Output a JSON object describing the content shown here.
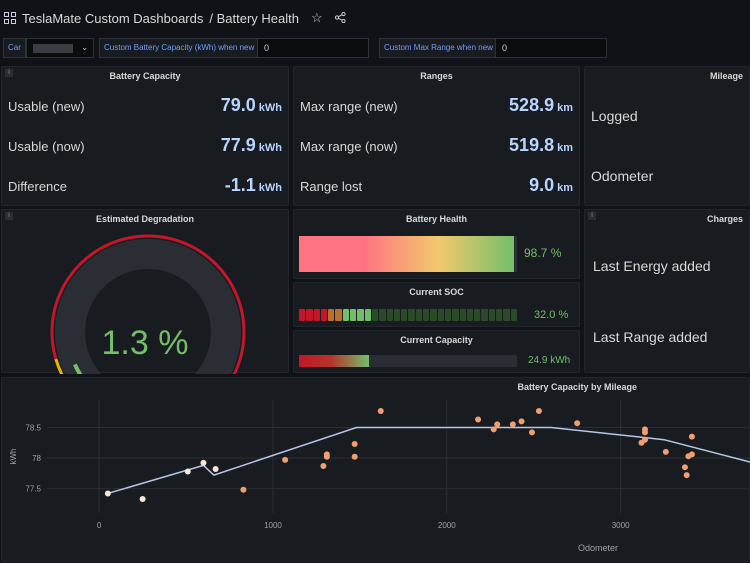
{
  "header": {
    "dashboard": "TeslaMate Custom Dashboards",
    "page": "/ Battery Health"
  },
  "vars": {
    "car_label": "Car",
    "car_value": "",
    "capacity_label": "Custom Battery Capacity (kWh) when new",
    "capacity_value": "0",
    "range_label": "Custom Max Range when new",
    "range_value": "0"
  },
  "battery_capacity": {
    "title": "Battery Capacity",
    "rows": [
      {
        "label": "Usable (new)",
        "value": "79.0",
        "unit": "kWh"
      },
      {
        "label": "Usable (now)",
        "value": "77.9",
        "unit": "kWh"
      },
      {
        "label": "Difference",
        "value": "-1.1",
        "unit": "kWh"
      }
    ]
  },
  "ranges": {
    "title": "Ranges",
    "rows": [
      {
        "label": "Max range (new)",
        "value": "528.9",
        "unit": "km"
      },
      {
        "label": "Max range (now)",
        "value": "519.8",
        "unit": "km"
      },
      {
        "label": "Range lost",
        "value": "9.0",
        "unit": "km"
      }
    ]
  },
  "mileage": {
    "title": "Mileage",
    "logged": "Logged",
    "odometer": "Odometer"
  },
  "degradation": {
    "title": "Estimated Degradation",
    "value": "1.3 %",
    "gauge_fraction": 0.013
  },
  "battery_health": {
    "title": "Battery Health",
    "value": "98.7 %",
    "fraction": 0.987
  },
  "soc": {
    "title": "Current SOC",
    "value": "32.0 %",
    "fraction": 0.32
  },
  "current_capacity": {
    "title": "Current Capacity",
    "value": "24.9 kWh",
    "fraction": 0.32
  },
  "charges": {
    "title": "Charges",
    "energy": "Last Energy added",
    "range": "Last Range added"
  },
  "colors": {
    "accent": "#6e9fff",
    "value_blue": "#b8d5ff",
    "green": "#73bf69",
    "red": "#c4162a",
    "orange": "#f2995b"
  },
  "chart_data": {
    "type": "scatter",
    "title": "Battery Capacity by Mileage",
    "xlabel": "Odometer",
    "ylabel": "kWh",
    "xlim": [
      -300,
      3750
    ],
    "ylim": [
      77.1,
      78.95
    ],
    "xticks": [
      "0",
      "1000",
      "2000",
      "3000"
    ],
    "yticks": [
      "77.5",
      "78",
      "78.5"
    ],
    "points": [
      {
        "x": 50,
        "y": 77.42,
        "c": "#f5e6d8"
      },
      {
        "x": 250,
        "y": 77.33,
        "c": "#f5e6d8"
      },
      {
        "x": 510,
        "y": 77.78,
        "c": "#f5e6d8"
      },
      {
        "x": 600,
        "y": 77.92,
        "c": "#f5e6d8"
      },
      {
        "x": 670,
        "y": 77.82,
        "c": "#f5e6d8"
      },
      {
        "x": 830,
        "y": 77.48,
        "c": "#f0a070"
      },
      {
        "x": 1070,
        "y": 77.97,
        "c": "#f0a070"
      },
      {
        "x": 1290,
        "y": 77.87,
        "c": "#f0a070"
      },
      {
        "x": 1310,
        "y": 78.02,
        "c": "#f0a070"
      },
      {
        "x": 1310,
        "y": 78.06,
        "c": "#f0a070"
      },
      {
        "x": 1470,
        "y": 78.02,
        "c": "#f0a070"
      },
      {
        "x": 1470,
        "y": 78.23,
        "c": "#f0a070"
      },
      {
        "x": 1620,
        "y": 78.77,
        "c": "#f0a070"
      },
      {
        "x": 2180,
        "y": 78.63,
        "c": "#f0a070"
      },
      {
        "x": 2270,
        "y": 78.47,
        "c": "#f0a070"
      },
      {
        "x": 2290,
        "y": 78.55,
        "c": "#f0a070"
      },
      {
        "x": 2380,
        "y": 78.55,
        "c": "#f0a070"
      },
      {
        "x": 2430,
        "y": 78.6,
        "c": "#f0a070"
      },
      {
        "x": 2490,
        "y": 78.42,
        "c": "#f0a070"
      },
      {
        "x": 2530,
        "y": 78.77,
        "c": "#f0a070"
      },
      {
        "x": 2750,
        "y": 78.57,
        "c": "#f0a070"
      },
      {
        "x": 3120,
        "y": 78.25,
        "c": "#f0a070"
      },
      {
        "x": 3140,
        "y": 78.3,
        "c": "#f0a070"
      },
      {
        "x": 3140,
        "y": 78.42,
        "c": "#f0a070"
      },
      {
        "x": 3140,
        "y": 78.47,
        "c": "#f0a070"
      },
      {
        "x": 3260,
        "y": 78.1,
        "c": "#f0a070"
      },
      {
        "x": 3370,
        "y": 77.85,
        "c": "#f0a070"
      },
      {
        "x": 3380,
        "y": 77.72,
        "c": "#f0a070"
      },
      {
        "x": 3390,
        "y": 78.03,
        "c": "#f0a070"
      },
      {
        "x": 3410,
        "y": 78.06,
        "c": "#f0a070"
      },
      {
        "x": 3410,
        "y": 78.35,
        "c": "#f0a070"
      }
    ],
    "trend": {
      "x": [
        50,
        600,
        660,
        1480,
        2600,
        3250,
        3750
      ],
      "y": [
        77.42,
        77.88,
        77.72,
        78.5,
        78.5,
        78.3,
        77.93
      ]
    }
  }
}
